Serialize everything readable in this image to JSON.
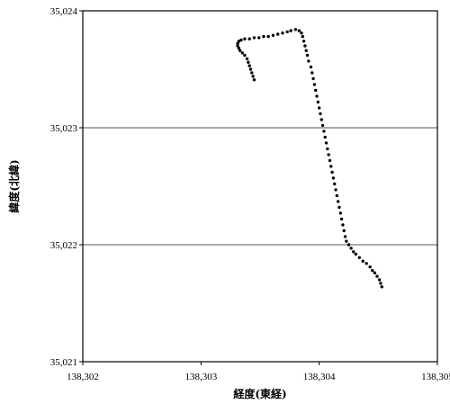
{
  "chart_data": {
    "type": "scatter",
    "title": "",
    "xlabel": "経度(東経)",
    "ylabel": "緯度(北緯)",
    "xlim": [
      138.302,
      138.305
    ],
    "ylim": [
      35.021,
      35.024
    ],
    "x_ticks": [
      "138.302",
      "138.303",
      "138.304",
      "138.305"
    ],
    "y_ticks": [
      "35.021",
      "35.022",
      "35.023",
      "35.024"
    ],
    "grid": "horizontal major lines",
    "legend": "none",
    "marker_color": "#000000",
    "series": [
      {
        "points": [
          [
            138.30345,
            35.02341
          ],
          [
            138.30344,
            35.02344
          ],
          [
            138.30343,
            35.02347
          ],
          [
            138.30342,
            35.0235
          ],
          [
            138.30341,
            35.02353
          ],
          [
            138.3034,
            35.02356
          ],
          [
            138.30339,
            35.02359
          ],
          [
            138.30337,
            35.02362
          ],
          [
            138.30335,
            35.02364
          ],
          [
            138.30333,
            35.02366
          ],
          [
            138.30332,
            35.02368
          ],
          [
            138.30331,
            35.0237
          ],
          [
            138.30331,
            35.02372
          ],
          [
            138.30332,
            35.02374
          ],
          [
            138.30334,
            35.02375
          ],
          [
            138.30337,
            35.02376
          ],
          [
            138.30341,
            35.02376
          ],
          [
            138.30345,
            35.02377
          ],
          [
            138.30349,
            35.02377
          ],
          [
            138.30353,
            35.02378
          ],
          [
            138.30357,
            35.02378
          ],
          [
            138.30361,
            35.02379
          ],
          [
            138.30365,
            35.0238
          ],
          [
            138.30369,
            35.02381
          ],
          [
            138.30373,
            35.02382
          ],
          [
            138.30376,
            35.02383
          ],
          [
            138.3038,
            35.02384
          ],
          [
            138.30383,
            35.02383
          ],
          [
            138.30385,
            35.02381
          ],
          [
            138.30386,
            35.02378
          ],
          [
            138.30387,
            35.02374
          ],
          [
            138.30388,
            35.0237
          ],
          [
            138.30389,
            35.02366
          ],
          [
            138.3039,
            35.02362
          ],
          [
            138.30391,
            35.02357
          ],
          [
            138.30393,
            35.02352
          ],
          [
            138.30394,
            35.02347
          ],
          [
            138.30395,
            35.02342
          ],
          [
            138.30396,
            35.02337
          ],
          [
            138.30397,
            35.02332
          ],
          [
            138.30398,
            35.02327
          ],
          [
            138.30399,
            35.02322
          ],
          [
            138.304,
            35.02317
          ],
          [
            138.30401,
            35.02312
          ],
          [
            138.30402,
            35.02307
          ],
          [
            138.30403,
            35.02302
          ],
          [
            138.30404,
            35.02297
          ],
          [
            138.30405,
            35.02292
          ],
          [
            138.30406,
            35.02287
          ],
          [
            138.30407,
            35.02282
          ],
          [
            138.30408,
            35.02277
          ],
          [
            138.30409,
            35.02272
          ],
          [
            138.3041,
            35.02267
          ],
          [
            138.30411,
            35.02262
          ],
          [
            138.30412,
            35.02257
          ],
          [
            138.30413,
            35.02252
          ],
          [
            138.30414,
            35.02247
          ],
          [
            138.30415,
            35.02242
          ],
          [
            138.30416,
            35.02237
          ],
          [
            138.30417,
            35.02232
          ],
          [
            138.30418,
            35.02227
          ],
          [
            138.30419,
            35.02222
          ],
          [
            138.3042,
            35.02217
          ],
          [
            138.30421,
            35.02212
          ],
          [
            138.30422,
            35.02207
          ],
          [
            138.30423,
            35.02203
          ],
          [
            138.30425,
            35.022
          ],
          [
            138.30427,
            35.02197
          ],
          [
            138.30429,
            35.02194
          ],
          [
            138.30431,
            35.02192
          ],
          [
            138.30434,
            35.02189
          ],
          [
            138.30437,
            35.02186
          ],
          [
            138.3044,
            35.02184
          ],
          [
            138.30443,
            35.02181
          ],
          [
            138.30445,
            35.02178
          ],
          [
            138.30447,
            35.02176
          ],
          [
            138.30449,
            35.02173
          ],
          [
            138.30451,
            35.0217
          ],
          [
            138.30452,
            35.02167
          ],
          [
            138.30453,
            35.02164
          ]
        ]
      }
    ]
  }
}
